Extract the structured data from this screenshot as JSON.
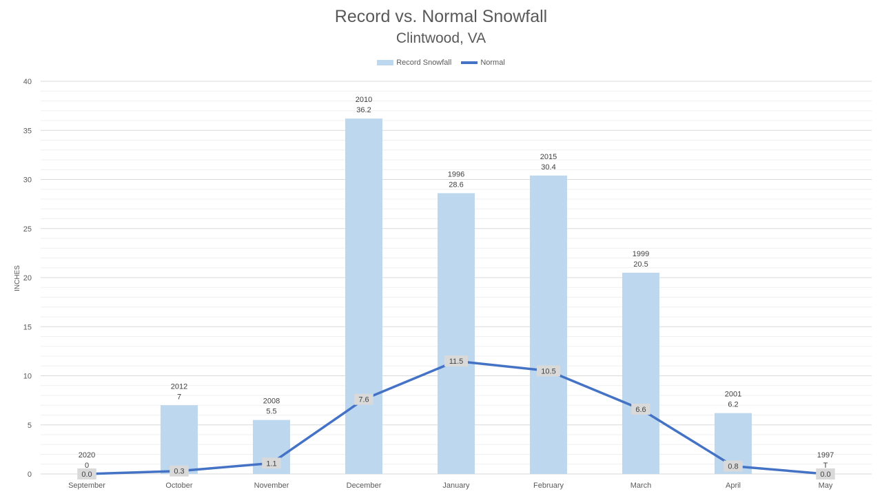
{
  "chart_data": {
    "type": "bar",
    "title": "Record vs. Normal Snowfall",
    "subtitle": "Clintwood, VA",
    "ylabel": "INCHES",
    "ylim": [
      0,
      40
    ],
    "yticks": [
      0,
      5,
      10,
      15,
      20,
      25,
      30,
      35,
      40
    ],
    "grid": true,
    "legend_position": "top-center",
    "categories": [
      "September",
      "October",
      "November",
      "December",
      "January",
      "February",
      "March",
      "April",
      "May"
    ],
    "series": [
      {
        "name": "Record Snowfall",
        "kind": "bar",
        "color": "#bdd7ee",
        "values": [
          0,
          7,
          5.5,
          36.2,
          28.6,
          30.4,
          20.5,
          6.2,
          0
        ],
        "year_labels": [
          "2020",
          "2012",
          "2008",
          "2010",
          "1996",
          "2015",
          "1999",
          "2001",
          "1997"
        ],
        "value_labels": [
          "0",
          "7",
          "5.5",
          "36.2",
          "28.6",
          "30.4",
          "20.5",
          "6.2",
          "T"
        ]
      },
      {
        "name": "Normal",
        "kind": "line",
        "color": "#4472c4",
        "values": [
          0.0,
          0.3,
          1.1,
          7.6,
          11.5,
          10.5,
          6.6,
          0.8,
          0.0
        ],
        "value_labels": [
          "0.0",
          "0.3",
          "1.1",
          "7.6",
          "11.5",
          "10.5",
          "6.6",
          "0.8",
          "0.0"
        ]
      }
    ]
  }
}
